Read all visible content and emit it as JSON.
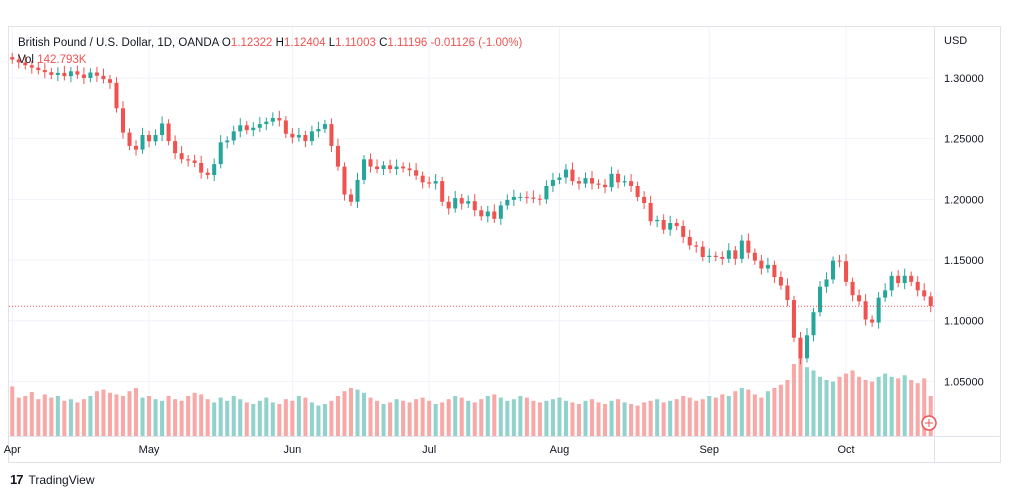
{
  "header": {
    "symbol": "British Pound / U.S. Dollar, 1D, OANDA",
    "open_label": "O",
    "open": "1.12322",
    "high_label": "H",
    "high": "1.12404",
    "low_label": "L",
    "low": "1.11003",
    "close_label": "C",
    "close": "1.11196",
    "change": "-0.01126 (-1.00%)",
    "vol_label": "Vol",
    "vol": "142.793K"
  },
  "price_axis": {
    "currency": "USD"
  },
  "footer": {
    "brand": "TradingView",
    "logo_text": "17"
  },
  "colors": {
    "up": "#26a69a",
    "down": "#ef5350",
    "vol_up": "#92d2cc",
    "vol_down": "#f7a9a7",
    "grid": "#f0f3fa",
    "last_line": "#ef5350"
  },
  "chart_data": {
    "type": "candlestick",
    "ylim": [
      1.005,
      1.342
    ],
    "y_ticks": [
      1.05,
      1.1,
      1.15,
      1.2,
      1.25,
      1.3
    ],
    "y_tick_labels": [
      "1.05000",
      "1.10000",
      "1.15000",
      "1.20000",
      "1.25000",
      "1.30000"
    ],
    "x_ticks": [
      {
        "label": "Apr",
        "index": 0
      },
      {
        "label": "May",
        "index": 21
      },
      {
        "label": "Jun",
        "index": 43
      },
      {
        "label": "Jul",
        "index": 64
      },
      {
        "label": "Aug",
        "index": 84
      },
      {
        "label": "Sep",
        "index": 107
      },
      {
        "label": "Oct",
        "index": 128
      }
    ],
    "last_price": 1.11196,
    "closes": [
      1.3152,
      1.3128,
      1.3105,
      1.3085,
      1.3065,
      1.3048,
      1.3025,
      1.3042,
      1.3015,
      1.3055,
      1.3028,
      1.3,
      1.3045,
      1.3018,
      1.299,
      1.296,
      1.275,
      1.255,
      1.244,
      1.241,
      1.253,
      1.2478,
      1.253,
      1.2625,
      1.248,
      1.238,
      1.233,
      1.232,
      1.23,
      1.222,
      1.22,
      1.229,
      1.247,
      1.2485,
      1.256,
      1.261,
      1.257,
      1.259,
      1.262,
      1.264,
      1.267,
      1.265,
      1.254,
      1.251,
      1.253,
      1.248,
      1.256,
      1.258,
      1.262,
      1.244,
      1.227,
      1.204,
      1.198,
      1.216,
      1.233,
      1.227,
      1.225,
      1.228,
      1.225,
      1.227,
      1.2255,
      1.224,
      1.2195,
      1.214,
      1.213,
      1.215,
      1.198,
      1.1925,
      1.201,
      1.1965,
      1.1985,
      1.191,
      1.186,
      1.19,
      1.184,
      1.195,
      1.1995,
      1.202,
      1.202,
      1.2015,
      1.2005,
      1.2,
      1.211,
      1.216,
      1.218,
      1.2245,
      1.215,
      1.213,
      1.2175,
      1.213,
      1.212,
      1.21,
      1.221,
      1.214,
      1.215,
      1.211,
      1.202,
      1.197,
      1.182,
      1.183,
      1.175,
      1.1805,
      1.178,
      1.169,
      1.162,
      1.161,
      1.1525,
      1.1535,
      1.1525,
      1.151,
      1.158,
      1.151,
      1.166,
      1.156,
      1.1495,
      1.143,
      1.146,
      1.136,
      1.129,
      1.117,
      1.086,
      1.069,
      1.088,
      1.107,
      1.128,
      1.134,
      1.1495,
      1.149,
      1.132,
      1.121,
      1.116,
      1.101,
      1.0985,
      1.119,
      1.125,
      1.137,
      1.131,
      1.137,
      1.132,
      1.125,
      1.12,
      1.112
    ],
    "volumes": [
      0.62,
      0.48,
      0.5,
      0.55,
      0.46,
      0.52,
      0.48,
      0.5,
      0.44,
      0.46,
      0.42,
      0.46,
      0.5,
      0.56,
      0.58,
      0.54,
      0.52,
      0.5,
      0.56,
      0.6,
      0.48,
      0.5,
      0.46,
      0.44,
      0.5,
      0.46,
      0.44,
      0.5,
      0.54,
      0.52,
      0.46,
      0.42,
      0.48,
      0.44,
      0.5,
      0.46,
      0.42,
      0.4,
      0.44,
      0.48,
      0.42,
      0.4,
      0.46,
      0.44,
      0.5,
      0.48,
      0.42,
      0.38,
      0.4,
      0.44,
      0.5,
      0.56,
      0.6,
      0.58,
      0.54,
      0.48,
      0.44,
      0.4,
      0.42,
      0.46,
      0.44,
      0.42,
      0.46,
      0.48,
      0.44,
      0.4,
      0.42,
      0.46,
      0.5,
      0.48,
      0.44,
      0.42,
      0.46,
      0.5,
      0.52,
      0.48,
      0.44,
      0.46,
      0.5,
      0.48,
      0.44,
      0.42,
      0.44,
      0.46,
      0.48,
      0.44,
      0.42,
      0.4,
      0.44,
      0.46,
      0.42,
      0.4,
      0.44,
      0.46,
      0.42,
      0.4,
      0.38,
      0.42,
      0.44,
      0.46,
      0.42,
      0.44,
      0.46,
      0.5,
      0.48,
      0.44,
      0.46,
      0.5,
      0.48,
      0.52,
      0.5,
      0.56,
      0.6,
      0.58,
      0.52,
      0.48,
      0.56,
      0.6,
      0.64,
      0.7,
      0.9,
      1.0,
      0.86,
      0.82,
      0.74,
      0.7,
      0.68,
      0.74,
      0.78,
      0.82,
      0.74,
      0.7,
      0.68,
      0.74,
      0.78,
      0.74,
      0.72,
      0.76,
      0.7,
      0.66,
      0.72,
      0.5
    ]
  }
}
